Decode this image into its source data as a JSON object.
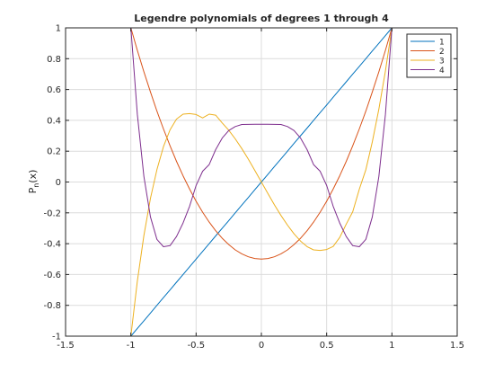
{
  "chart_data": {
    "type": "line",
    "title": "Legendre polynomials of degrees 1 through 4",
    "ylabel": "P",
    "ylabel_subscript": "n",
    "ylabel_suffix": "(x)",
    "xlabel": "",
    "xlim": [
      -1.5,
      1.5
    ],
    "ylim": [
      -1,
      1
    ],
    "xticks": [
      -1.5,
      -1,
      -0.5,
      0,
      0.5,
      1,
      1.5
    ],
    "xtick_labels": [
      "-1.5",
      "-1",
      "-0.5",
      "0",
      "0.5",
      "1",
      "1.5"
    ],
    "yticks": [
      -1,
      -0.8,
      -0.6,
      -0.4,
      -0.2,
      0,
      0.2,
      0.4,
      0.6,
      0.8,
      1
    ],
    "ytick_labels": [
      "-1",
      "-0.8",
      "-0.6",
      "-0.4",
      "-0.2",
      "0",
      "0.2",
      "0.4",
      "0.6",
      "0.8",
      "1"
    ],
    "grid": true,
    "legend_position": "top-right",
    "x": [
      -1,
      -0.95,
      -0.9,
      -0.85,
      -0.8,
      -0.75,
      -0.7,
      -0.65,
      -0.6,
      -0.55,
      -0.5,
      -0.45,
      -0.4,
      -0.35,
      -0.3,
      -0.25,
      -0.2,
      -0.15,
      -0.1,
      -0.05,
      0,
      0.05,
      0.1,
      0.15,
      0.2,
      0.25,
      0.3,
      0.35,
      0.4,
      0.45,
      0.5,
      0.55,
      0.6,
      0.65,
      0.7,
      0.75,
      0.8,
      0.85,
      0.9,
      0.95,
      1
    ],
    "series": [
      {
        "name": "1",
        "color": "#0072bd",
        "values": [
          -1,
          -0.95,
          -0.9,
          -0.85,
          -0.8,
          -0.75,
          -0.7,
          -0.65,
          -0.6,
          -0.55,
          -0.5,
          -0.45,
          -0.4,
          -0.35,
          -0.3,
          -0.25,
          -0.2,
          -0.15,
          -0.1,
          -0.05,
          0,
          0.05,
          0.1,
          0.15,
          0.2,
          0.25,
          0.3,
          0.35,
          0.4,
          0.45,
          0.5,
          0.55,
          0.6,
          0.65,
          0.7,
          0.75,
          0.8,
          0.85,
          0.9,
          0.95,
          1
        ]
      },
      {
        "name": "2",
        "color": "#d95319",
        "values": [
          1,
          0.854,
          0.715,
          0.584,
          0.46,
          0.344,
          0.235,
          0.134,
          0.04,
          -0.046,
          -0.125,
          -0.196,
          -0.26,
          -0.316,
          -0.365,
          -0.406,
          -0.44,
          -0.466,
          -0.485,
          -0.496,
          -0.5,
          -0.496,
          -0.485,
          -0.466,
          -0.44,
          -0.406,
          -0.365,
          -0.316,
          -0.26,
          -0.196,
          -0.125,
          -0.046,
          0.04,
          0.134,
          0.235,
          0.344,
          0.46,
          0.584,
          0.715,
          0.854,
          1
        ]
      },
      {
        "name": "3",
        "color": "#edb120",
        "values": [
          -1,
          -0.643,
          -0.347,
          -0.106,
          0.08,
          0.23,
          0.338,
          0.408,
          0.44,
          0.444,
          0.438,
          0.416,
          0.44,
          0.434,
          0.383,
          0.336,
          0.28,
          0.217,
          0.148,
          0.075,
          0,
          -0.075,
          -0.148,
          -0.217,
          -0.28,
          -0.336,
          -0.383,
          -0.419,
          -0.44,
          -0.444,
          -0.438,
          -0.418,
          -0.36,
          -0.273,
          -0.193,
          -0.047,
          0.08,
          0.26,
          0.473,
          0.72,
          1
        ]
      },
      {
        "name": "4",
        "color": "#7e2f8e",
        "values": [
          1,
          0.439,
          0.036,
          -0.226,
          -0.372,
          -0.42,
          -0.413,
          -0.354,
          -0.266,
          -0.157,
          -0.023,
          0.07,
          0.113,
          0.21,
          0.285,
          0.334,
          0.36,
          0.373,
          0.374,
          0.375,
          0.375,
          0.375,
          0.374,
          0.373,
          0.36,
          0.334,
          0.285,
          0.21,
          0.113,
          0.07,
          -0.023,
          -0.157,
          -0.266,
          -0.354,
          -0.413,
          -0.42,
          -0.372,
          -0.226,
          0.036,
          0.439,
          1
        ]
      }
    ]
  }
}
